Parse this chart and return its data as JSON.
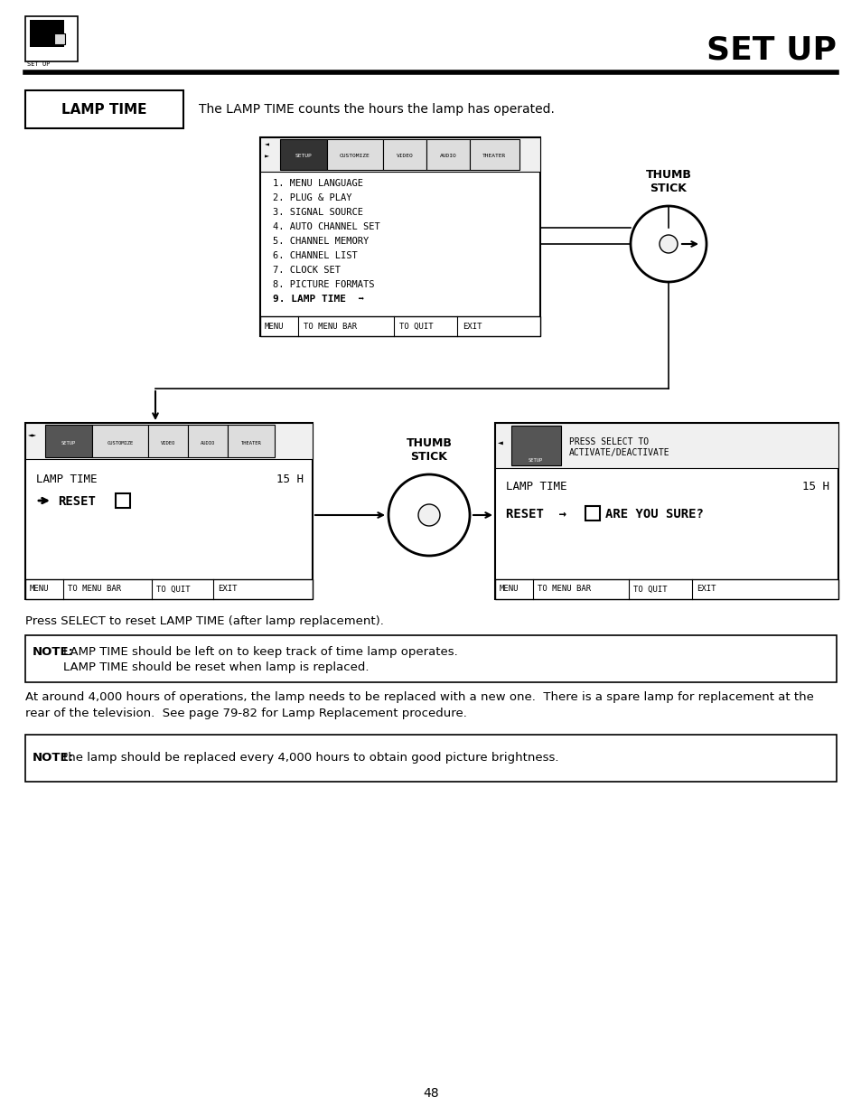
{
  "title": "SET UP",
  "page_number": "48",
  "background_color": "#ffffff",
  "header_icon_label": "SET UP",
  "lamp_time_box_label": "LAMP TIME",
  "lamp_time_description": "The LAMP TIME counts the hours the lamp has operated.",
  "menu_items": [
    "1. MENU LANGUAGE",
    "2. PLUG & PLAY",
    "3. SIGNAL SOURCE",
    "4. AUTO CHANNEL SET",
    "5. CHANNEL MEMORY",
    "6. CHANNEL LIST",
    "7. CLOCK SET",
    "8. PICTURE FORMATS"
  ],
  "menu_item_bold": "9. LAMP TIME",
  "thumb_stick_label_top": "THUMB\nSTICK",
  "thumb_stick_label_mid": "THUMB\nSTICK",
  "press_select_text": "Press SELECT to reset LAMP TIME (after lamp replacement).",
  "note1_label": "NOTE:",
  "note1_line1": "LAMP TIME should be left on to keep track of time lamp operates.",
  "note1_line2": "LAMP TIME should be reset when lamp is replaced.",
  "para_text_line1": "At around 4,000 hours of operations, the lamp needs to be replaced with a new one.  There is a spare lamp for replacement at the",
  "para_text_line2": "rear of the television.  See page 79-82 for Lamp Replacement procedure.",
  "note2_label": "NOTE:",
  "note2_text": "the lamp should be replaced every 4,000 hours to obtain good picture brightness.",
  "screen2_press_select_line1": "PRESS SELECT TO",
  "screen2_press_select_line2": "ACTIVATE/DEACTIVATE"
}
